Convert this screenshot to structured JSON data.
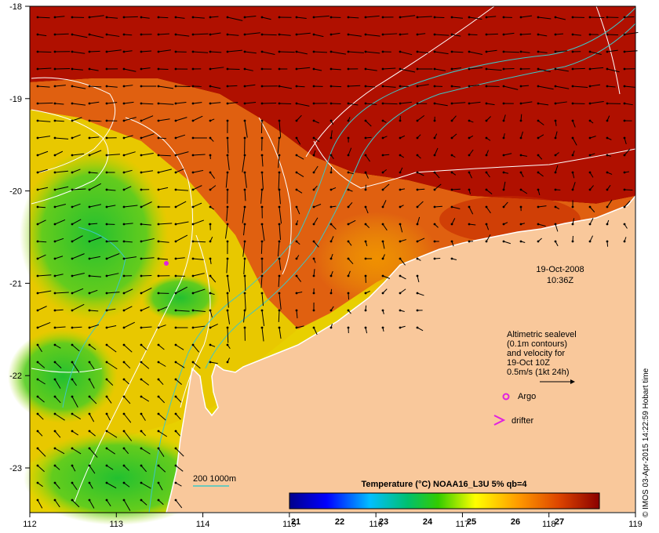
{
  "map": {
    "x_ticks": [
      "112",
      "113",
      "114",
      "115",
      "116",
      "117",
      "118",
      "119"
    ],
    "y_ticks": [
      "-18",
      "-19",
      "-20",
      "-21",
      "-22",
      "-23"
    ]
  },
  "timestamp": {
    "date": "19-Oct-2008",
    "time": "10:36Z"
  },
  "legend": {
    "lines": [
      "Altimetric sealevel",
      "(0.1m contours)",
      "and velocity for",
      "19-Oct 10Z",
      "0.5m/s (1kt 24h)"
    ],
    "argo_label": "Argo",
    "drifter_label": "drifter",
    "isobath_label": "200  1000m"
  },
  "colorbar": {
    "title": "Temperature (°C) NOAA16_L3U 5% qb=4",
    "ticks": [
      "21",
      "22",
      "23",
      "24",
      "25",
      "26",
      "27"
    ]
  },
  "credit": "© IMOS 03-Apr-2015 14:22:59 Hobart time",
  "colors": {
    "land": "#f9c89b",
    "isobath": "#3dc7c7",
    "contour": "#ffffff",
    "argo": "#e020e0",
    "hot": "#a00a00"
  }
}
